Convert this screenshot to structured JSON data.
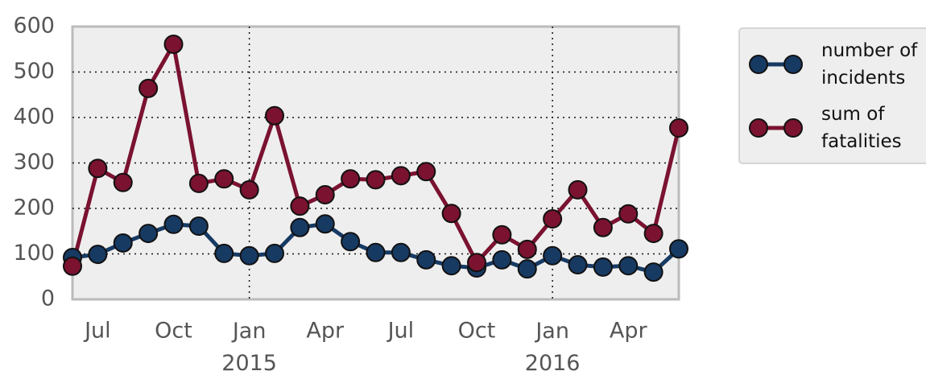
{
  "chart_data": {
    "type": "line",
    "x": [
      "2014-06",
      "2014-07",
      "2014-08",
      "2014-09",
      "2014-10",
      "2014-11",
      "2014-12",
      "2015-01",
      "2015-02",
      "2015-03",
      "2015-04",
      "2015-05",
      "2015-06",
      "2015-07",
      "2015-08",
      "2015-09",
      "2015-10",
      "2015-11",
      "2015-12",
      "2016-01",
      "2016-02",
      "2016-03",
      "2016-04",
      "2016-05",
      "2016-06"
    ],
    "series": [
      {
        "name": "number of incidents",
        "color": "#173a63",
        "values": [
          92,
          99,
          124,
          145,
          165,
          161,
          101,
          96,
          101,
          158,
          166,
          127,
          103,
          103,
          87,
          74,
          69,
          87,
          67,
          96,
          76,
          71,
          74,
          60,
          111
        ]
      },
      {
        "name": "sum of fatalities",
        "color": "#7a1230",
        "values": [
          73,
          288,
          257,
          464,
          561,
          255,
          265,
          241,
          404,
          205,
          230,
          265,
          263,
          272,
          281,
          189,
          81,
          142,
          110,
          177,
          241,
          158,
          188,
          145,
          377
        ]
      }
    ],
    "xlim": [
      "2014-06",
      "2016-06"
    ],
    "xticks": [
      {
        "value": "2014-07",
        "label": "Jul"
      },
      {
        "value": "2014-10",
        "label": "Oct"
      },
      {
        "value": "2015-01",
        "label": "Jan\n2015"
      },
      {
        "value": "2015-04",
        "label": "Apr"
      },
      {
        "value": "2015-07",
        "label": "Jul"
      },
      {
        "value": "2015-10",
        "label": "Oct"
      },
      {
        "value": "2016-01",
        "label": "Jan\n2016"
      },
      {
        "value": "2016-04",
        "label": "Apr"
      }
    ],
    "ylim": [
      0,
      600
    ],
    "yticks": [
      0,
      100,
      200,
      300,
      400,
      500,
      600
    ],
    "grid": true,
    "legend": "outside-upper-right"
  }
}
